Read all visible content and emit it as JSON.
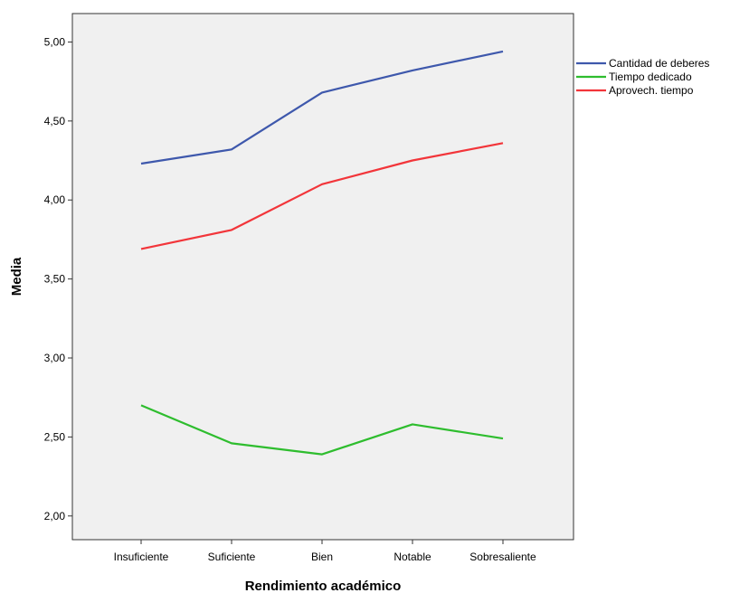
{
  "chart_data": {
    "type": "line",
    "title": "",
    "xlabel": "Rendimiento académico",
    "ylabel": "Media",
    "categories": [
      "Insuficiente",
      "Suficiente",
      "Bien",
      "Notable",
      "Sobresaliente"
    ],
    "ylim": [
      1.85,
      5.18
    ],
    "yticks": [
      "2,00",
      "2,50",
      "3,00",
      "3,50",
      "4,00",
      "4,50",
      "5,00"
    ],
    "ytick_values": [
      2.0,
      2.5,
      3.0,
      3.5,
      4.0,
      4.5,
      5.0
    ],
    "grid": false,
    "plot_background": "#f0f0f0",
    "legend_position": "right",
    "series": [
      {
        "name": "Cantidad de deberes",
        "color": "#3e58ac",
        "values": [
          4.23,
          4.32,
          4.68,
          4.82,
          4.94
        ]
      },
      {
        "name": "Tiempo dedicado",
        "color": "#2ebd2e",
        "values": [
          2.7,
          2.46,
          2.39,
          2.58,
          2.49
        ]
      },
      {
        "name": "Aprovech. tiempo",
        "color": "#f2353a",
        "values": [
          3.69,
          3.81,
          4.1,
          4.25,
          4.36
        ]
      }
    ]
  }
}
